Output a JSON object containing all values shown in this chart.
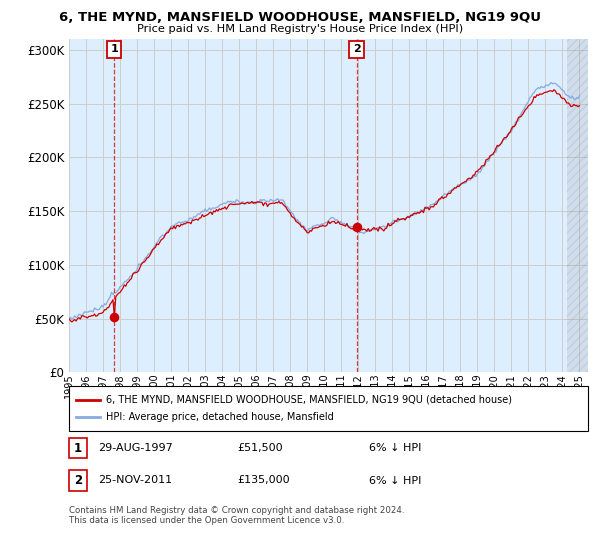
{
  "title": "6, THE MYND, MANSFIELD WOODHOUSE, MANSFIELD, NG19 9QU",
  "subtitle": "Price paid vs. HM Land Registry's House Price Index (HPI)",
  "legend_line1": "6, THE MYND, MANSFIELD WOODHOUSE, MANSFIELD, NG19 9QU (detached house)",
  "legend_line2": "HPI: Average price, detached house, Mansfield",
  "annotation1_label": "1",
  "annotation1_date": "29-AUG-1997",
  "annotation1_price": "£51,500",
  "annotation1_hpi": "6% ↓ HPI",
  "annotation2_label": "2",
  "annotation2_date": "25-NOV-2011",
  "annotation2_price": "£135,000",
  "annotation2_hpi": "6% ↓ HPI",
  "footnote": "Contains HM Land Registry data © Crown copyright and database right 2024.\nThis data is licensed under the Open Government Licence v3.0.",
  "sale1_x": 1997.65,
  "sale1_y": 51500,
  "sale2_x": 2011.9,
  "sale2_y": 135000,
  "ylim": [
    0,
    310000
  ],
  "xlim_start": 1995.0,
  "xlim_end": 2025.5,
  "hatch_start": 2024.25,
  "price_color": "#cc0000",
  "hpi_color": "#88aadd",
  "grid_color": "#cccccc",
  "bg_color": "#ffffff",
  "plot_bg_color": "#ddeeff"
}
